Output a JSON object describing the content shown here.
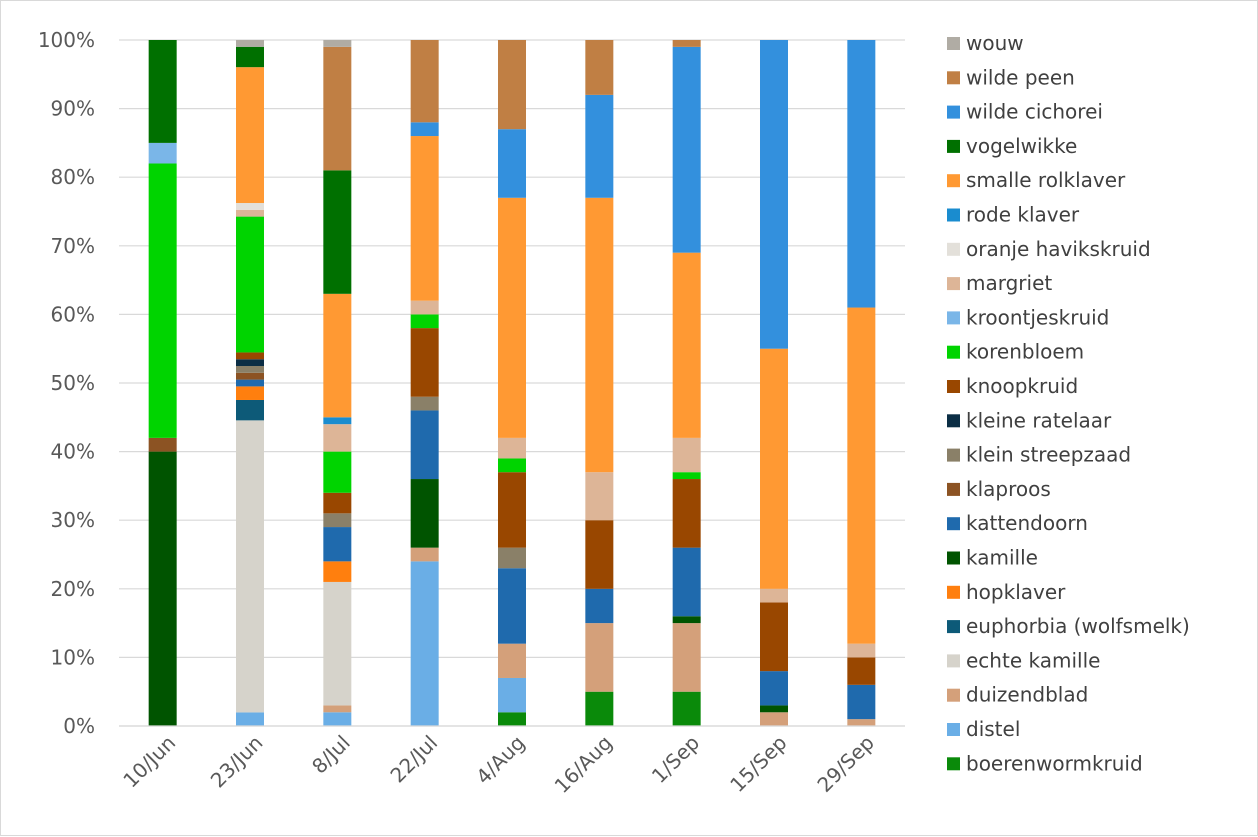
{
  "chart_data": {
    "type": "bar",
    "stacked": true,
    "percent": true,
    "title": "",
    "xlabel": "",
    "ylabel": "",
    "ylim": [
      0,
      100
    ],
    "yticks": [
      "0%",
      "10%",
      "20%",
      "30%",
      "40%",
      "50%",
      "60%",
      "70%",
      "80%",
      "90%",
      "100%"
    ],
    "grid": true,
    "legend_position": "right",
    "categories": [
      "10/Jun",
      "23/Jun",
      "8/Jul",
      "22/Jul",
      "4/Aug",
      "16/Aug",
      "1/Sep",
      "15/Sep",
      "29/Sep"
    ],
    "series": [
      {
        "name": "boerenwormkruid",
        "color": "#0a8a0a",
        "values": [
          0,
          0,
          0,
          0,
          2,
          5,
          5,
          0,
          0
        ]
      },
      {
        "name": "distel",
        "color": "#6aaee6",
        "values": [
          0,
          2,
          2,
          24,
          5,
          0,
          0,
          0,
          0
        ]
      },
      {
        "name": "duizendblad",
        "color": "#d4a07a",
        "values": [
          0,
          0,
          1,
          2,
          5,
          10,
          10,
          2,
          1
        ]
      },
      {
        "name": "echte kamille",
        "color": "#d6d3cb",
        "values": [
          0,
          43,
          18,
          0,
          0,
          0,
          0,
          0,
          0
        ]
      },
      {
        "name": "euphorbia (wolfsmelk)",
        "color": "#0d5a78",
        "values": [
          0,
          3,
          0,
          0,
          0,
          0,
          0,
          0,
          0
        ]
      },
      {
        "name": "hopklaver",
        "color": "#ff7f0e",
        "values": [
          0,
          2,
          3,
          0,
          0,
          0,
          0,
          0,
          0
        ]
      },
      {
        "name": "kamille",
        "color": "#005400",
        "values": [
          40,
          0,
          0,
          10,
          0,
          0,
          1,
          1,
          0
        ]
      },
      {
        "name": "kattendoorn",
        "color": "#1f6aad",
        "values": [
          0,
          1,
          5,
          10,
          11,
          5,
          10,
          5,
          5
        ]
      },
      {
        "name": "klaproos",
        "color": "#8c5323",
        "values": [
          2,
          1,
          0,
          0,
          0,
          0,
          0,
          0,
          0
        ]
      },
      {
        "name": "klein streepzaad",
        "color": "#8a8068",
        "values": [
          0,
          1,
          2,
          2,
          3,
          0,
          0,
          0,
          0
        ]
      },
      {
        "name": "kleine ratelaar",
        "color": "#0b2e45",
        "values": [
          0,
          1,
          0,
          0,
          0,
          0,
          0,
          0,
          0
        ]
      },
      {
        "name": "knoopkruid",
        "color": "#994700",
        "values": [
          0,
          1,
          3,
          10,
          11,
          10,
          10,
          10,
          4
        ]
      },
      {
        "name": "korenbloem",
        "color": "#00d400",
        "values": [
          40,
          20,
          6,
          2,
          2,
          0,
          1,
          0,
          0
        ]
      },
      {
        "name": "kroontjeskruid",
        "color": "#7ab6e8",
        "values": [
          3,
          0,
          0,
          0,
          0,
          0,
          0,
          0,
          0
        ]
      },
      {
        "name": "margriet",
        "color": "#ddb597",
        "values": [
          0,
          1,
          4,
          2,
          3,
          7,
          5,
          2,
          2
        ]
      },
      {
        "name": "oranje havikskruid",
        "color": "#e3e0da",
        "values": [
          0,
          1,
          0,
          0,
          0,
          0,
          0,
          0,
          0
        ]
      },
      {
        "name": "rode klaver",
        "color": "#1a8ccf",
        "values": [
          0,
          0,
          1,
          0,
          0,
          0,
          0,
          0,
          0
        ]
      },
      {
        "name": "smalle rolklaver",
        "color": "#ff9933",
        "values": [
          0,
          20,
          18,
          24,
          35,
          40,
          27,
          35,
          49
        ]
      },
      {
        "name": "vogelwikke",
        "color": "#007000",
        "values": [
          15,
          3,
          18,
          0,
          0,
          0,
          0,
          0,
          0
        ]
      },
      {
        "name": "wilde cichorei",
        "color": "#3390dd",
        "values": [
          0,
          0,
          0,
          2,
          10,
          15,
          30,
          45,
          39
        ]
      },
      {
        "name": "wilde peen",
        "color": "#c07f44",
        "values": [
          0,
          0,
          18,
          12,
          13,
          8,
          1,
          0,
          0
        ]
      },
      {
        "name": "wouw",
        "color": "#b0aca4",
        "values": [
          0,
          1,
          1,
          0,
          0,
          0,
          0,
          0,
          0
        ]
      }
    ]
  }
}
